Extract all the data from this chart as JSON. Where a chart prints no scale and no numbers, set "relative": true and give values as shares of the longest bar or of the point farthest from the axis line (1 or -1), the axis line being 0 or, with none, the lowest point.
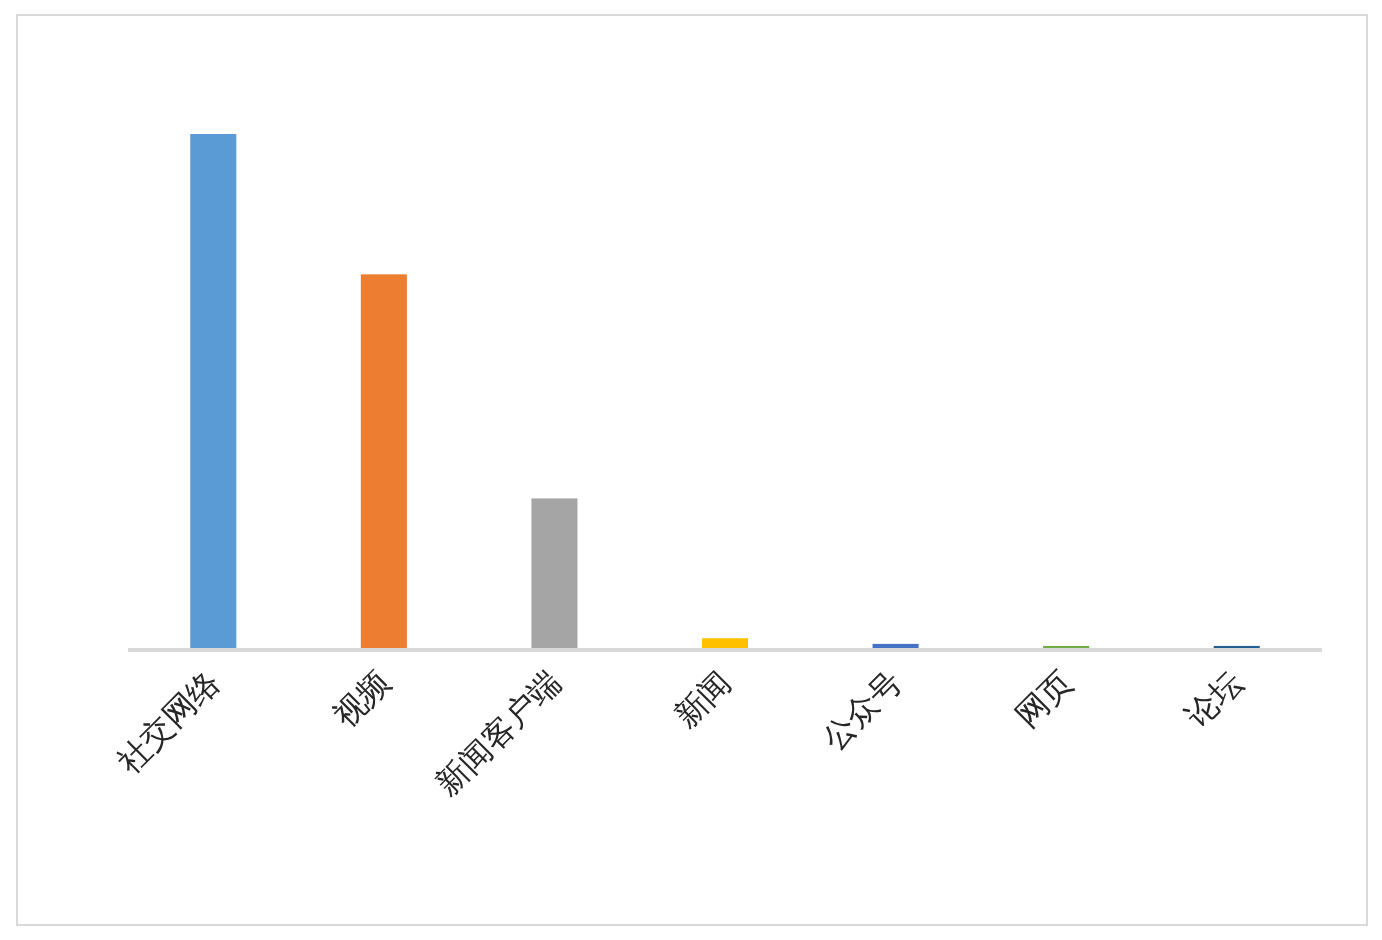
{
  "chart_data": {
    "type": "bar",
    "relative": true,
    "categories": [
      "社交网络",
      "视频",
      "新闻客户端",
      "新闻",
      "公众号",
      "网页",
      "论坛"
    ],
    "values": [
      1,
      0.727,
      0.291,
      0.019,
      0.008,
      0.004,
      0.004
    ],
    "colors": [
      "#5b9bd5",
      "#ed7d31",
      "#a5a5a5",
      "#ffc000",
      "#4472c4",
      "#70ad47",
      "#255e91"
    ]
  }
}
